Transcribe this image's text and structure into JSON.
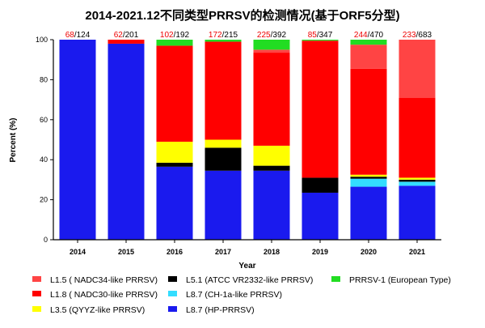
{
  "chart_data": {
    "type": "bar",
    "stacked": true,
    "title": "2014-2021.12不同类型PRRSV的检测情况(基于ORF5分型)",
    "xlabel": "Year",
    "ylabel": "Percent (%)",
    "ylim": [
      0,
      100
    ],
    "yticks": [
      "0",
      "20",
      "40",
      "60",
      "80",
      "100"
    ],
    "categories": [
      "2014",
      "2015",
      "2016",
      "2017",
      "2018",
      "2019",
      "2020",
      "2021"
    ],
    "counts": [
      {
        "positive": "68",
        "total": "/124"
      },
      {
        "positive": "62",
        "total": "/201"
      },
      {
        "positive": "102",
        "total": "/192"
      },
      {
        "positive": "172",
        "total": "/215"
      },
      {
        "positive": "225",
        "total": "/392"
      },
      {
        "positive": "85",
        "total": "/347"
      },
      {
        "positive": "244",
        "total": "/470"
      },
      {
        "positive": "233",
        "total": "/683"
      }
    ],
    "series": [
      {
        "name": "L8.7 (HP-PRRSV)",
        "color": "#1a1aee",
        "values": [
          100,
          98,
          36.5,
          34.5,
          34.5,
          23.5,
          26.5,
          27
        ]
      },
      {
        "name": "L8.7 (CH-1a-like PRRSV)",
        "color": "#33ddff",
        "values": [
          0,
          0,
          0,
          0,
          0,
          0,
          4,
          2
        ]
      },
      {
        "name": "L5.1 (ATCC VR2332-like PRRSV)",
        "color": "#000000",
        "values": [
          0,
          0,
          2,
          11.5,
          2.5,
          7.5,
          1,
          1
        ]
      },
      {
        "name": "L3.5 (QYYZ-like PRRSV)",
        "color": "#ffff00",
        "values": [
          0,
          0,
          10.5,
          4,
          10,
          0,
          1,
          1
        ]
      },
      {
        "name": "L1.8 ( NADC30-like PRRSV)",
        "color": "#ff0000",
        "values": [
          0,
          2,
          48,
          49,
          46.5,
          68.5,
          53,
          40
        ]
      },
      {
        "name": "L1.5 ( NADC34-like PRRSV)",
        "color": "#ff4444",
        "values": [
          0,
          0,
          0,
          0,
          1.5,
          0,
          12,
          29
        ]
      },
      {
        "name": "PRRSV-1 (European Type)",
        "color": "#22dd22",
        "values": [
          0,
          0,
          3,
          1,
          5,
          0.5,
          2.5,
          0
        ]
      }
    ],
    "legend_placement": "bottom",
    "legend": [
      {
        "label": "L1.5 ( NADC34-like PRRSV)",
        "color": "#ff4444"
      },
      {
        "label": "L5.1 (ATCC VR2332-like PRRSV)",
        "color": "#000000"
      },
      {
        "label": "PRRSV-1 (European Type)",
        "color": "#22dd22"
      },
      {
        "label": "L1.8 ( NADC30-like PRRSV)",
        "color": "#ff0000"
      },
      {
        "label": "L8.7 (CH-1a-like PRRSV)",
        "color": "#33ddff"
      },
      {
        "label": "L3.5 (QYYZ-like PRRSV)",
        "color": "#ffff00"
      },
      {
        "label": "L8.7 (HP-PRRSV)",
        "color": "#1a1aee"
      }
    ],
    "count_colors": {
      "positive": "#ee0000",
      "total": "#000000"
    }
  }
}
